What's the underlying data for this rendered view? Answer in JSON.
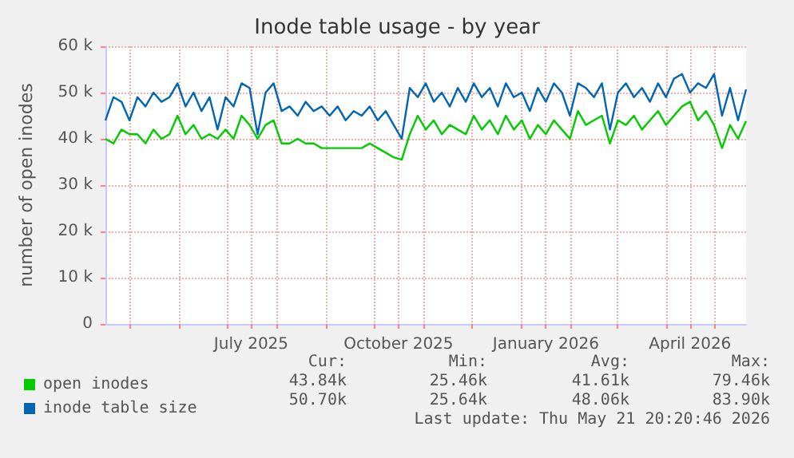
{
  "chart_data": {
    "type": "line",
    "title": "Inode table usage - by year",
    "ylabel": "number of open inodes",
    "x": [
      "2025-04-16",
      "2025-04-21",
      "2025-04-26",
      "2025-05-01",
      "2025-05-06",
      "2025-05-11",
      "2025-05-16",
      "2025-05-21",
      "2025-05-26",
      "2025-05-31",
      "2025-06-05",
      "2025-06-10",
      "2025-06-15",
      "2025-06-20",
      "2025-06-25",
      "2025-06-30",
      "2025-07-05",
      "2025-07-10",
      "2025-07-15",
      "2025-07-20",
      "2025-07-25",
      "2025-07-30",
      "2025-08-04",
      "2025-08-09",
      "2025-08-14",
      "2025-08-19",
      "2025-08-24",
      "2025-08-29",
      "2025-09-03",
      "2025-09-08",
      "2025-09-13",
      "2025-09-18",
      "2025-09-23",
      "2025-09-28",
      "2025-10-03",
      "2025-10-08",
      "2025-10-13",
      "2025-10-18",
      "2025-10-23",
      "2025-10-28",
      "2025-11-02",
      "2025-11-07",
      "2025-11-12",
      "2025-11-17",
      "2025-11-22",
      "2025-11-27",
      "2025-12-02",
      "2025-12-07",
      "2025-12-12",
      "2025-12-17",
      "2025-12-22",
      "2025-12-27",
      "2026-01-01",
      "2026-01-06",
      "2026-01-11",
      "2026-01-16",
      "2026-01-21",
      "2026-01-26",
      "2026-01-31",
      "2026-02-05",
      "2026-02-10",
      "2026-02-15",
      "2026-02-20",
      "2026-02-25",
      "2026-03-02",
      "2026-03-07",
      "2026-03-12",
      "2026-03-17",
      "2026-03-22",
      "2026-03-27",
      "2026-04-01",
      "2026-04-06",
      "2026-04-11",
      "2026-04-16",
      "2026-04-21",
      "2026-04-26",
      "2026-05-01",
      "2026-05-06",
      "2026-05-11",
      "2026-05-16",
      "2026-05-21"
    ],
    "series": [
      {
        "name": "open inodes",
        "color": "#00cc00",
        "values": [
          40000,
          39000,
          42000,
          41000,
          41000,
          39000,
          42000,
          40000,
          41000,
          45000,
          41000,
          43000,
          40000,
          41000,
          40000,
          42000,
          40000,
          45000,
          43000,
          40000,
          43000,
          44000,
          39000,
          39000,
          40000,
          39000,
          39000,
          38000,
          38000,
          38000,
          38000,
          38000,
          38000,
          39000,
          38000,
          37000,
          36000,
          35500,
          41000,
          45000,
          42000,
          44000,
          41000,
          43000,
          42000,
          41000,
          45000,
          42000,
          44000,
          41000,
          45000,
          42000,
          44000,
          40000,
          43000,
          41000,
          44000,
          42000,
          40000,
          46000,
          43000,
          44000,
          45000,
          39000,
          44000,
          43000,
          45000,
          42000,
          44000,
          46000,
          43000,
          45000,
          47000,
          48000,
          44000,
          46000,
          43000,
          38000,
          43000,
          40000,
          43840
        ]
      },
      {
        "name": "inode table size",
        "color": "#0066b3",
        "values": [
          44000,
          49000,
          48000,
          44000,
          49000,
          47000,
          50000,
          48000,
          49000,
          52000,
          47000,
          50000,
          46000,
          49000,
          42000,
          49000,
          47000,
          52000,
          51000,
          41000,
          50000,
          52000,
          46000,
          47000,
          45000,
          48000,
          46000,
          47000,
          45000,
          47000,
          44000,
          46000,
          45000,
          47000,
          44000,
          46000,
          43000,
          40000,
          51000,
          49000,
          52000,
          48000,
          50000,
          47000,
          51000,
          48000,
          52000,
          49000,
          51000,
          47000,
          52000,
          49000,
          50000,
          46000,
          51000,
          48000,
          52000,
          50000,
          45000,
          52000,
          51000,
          49000,
          52000,
          42000,
          50000,
          52000,
          49000,
          51000,
          48000,
          52000,
          49000,
          53000,
          54000,
          50000,
          52000,
          51000,
          54000,
          45000,
          51000,
          44000,
          50700
        ]
      }
    ],
    "xlim": [
      "2025-04-16",
      "2026-05-21"
    ],
    "xticks": [
      {
        "value": "2025-05-01",
        "label": null
      },
      {
        "value": "2025-06-01",
        "label": null
      },
      {
        "value": "2025-07-01",
        "label": null
      },
      {
        "value": "2025-07-16",
        "label": "July 2025"
      },
      {
        "value": "2025-08-01",
        "label": null
      },
      {
        "value": "2025-09-01",
        "label": null
      },
      {
        "value": "2025-10-01",
        "label": null
      },
      {
        "value": "2025-10-16",
        "label": "October 2025"
      },
      {
        "value": "2025-11-01",
        "label": null
      },
      {
        "value": "2025-12-01",
        "label": null
      },
      {
        "value": "2026-01-01",
        "label": null
      },
      {
        "value": "2026-01-16",
        "label": "January 2026"
      },
      {
        "value": "2026-02-01",
        "label": null
      },
      {
        "value": "2026-03-01",
        "label": null
      },
      {
        "value": "2026-04-01",
        "label": null
      },
      {
        "value": "2026-04-16",
        "label": "April 2026"
      },
      {
        "value": "2026-05-01",
        "label": null
      }
    ],
    "ylim": [
      0,
      60000
    ],
    "yticks": [
      0,
      {
        "value": 10000,
        "label": "10 k"
      },
      {
        "value": 20000,
        "label": "20 k"
      },
      {
        "value": 30000,
        "label": "30 k"
      },
      {
        "value": 40000,
        "label": "40 k"
      },
      {
        "value": 50000,
        "label": "50 k"
      },
      {
        "value": 60000,
        "label": "60 k"
      }
    ],
    "grid": true,
    "legend": "bottom left",
    "marker": "none",
    "line_style": "solid",
    "annotations": [
      "Cur:",
      "Min:",
      "Avg:",
      "Max:",
      "43.84k",
      "25.46k",
      "41.61k",
      "79.46k",
      "50.70k",
      "25.64k",
      "48.06k",
      "83.90k",
      "Last update: Thu May 21 20:20:46 2026"
    ]
  }
}
